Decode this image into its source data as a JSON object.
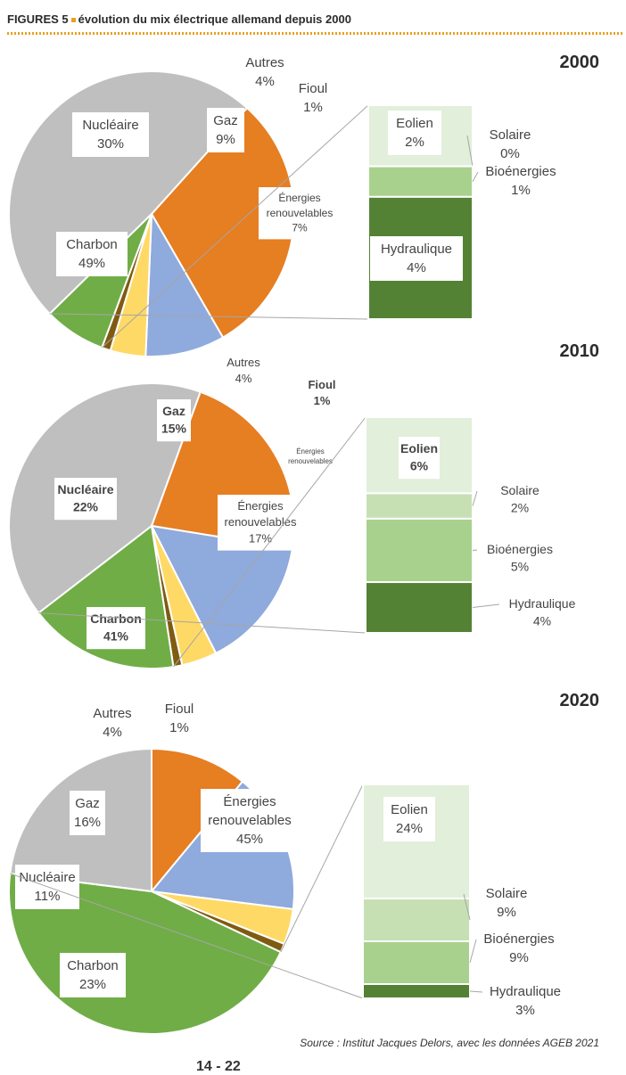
{
  "header": {
    "prefix": "FIGURES 5",
    "title": "évolution du mix électrique allemand depuis 2000",
    "accent_color": "#e8a020"
  },
  "colors": {
    "nucleaire": "#e67e22",
    "gaz": "#8faadc",
    "autres": "#ffd966",
    "fioul": "#7f5b12",
    "renouvelables": "#70ad47",
    "charbon": "#bfbfbf",
    "eolien": "#e2efda",
    "solaire": "#c6e0b4",
    "bioenergies": "#a9d18e",
    "hydraulique": "#548235"
  },
  "chart_data": [
    {
      "type": "pie",
      "title": "2000",
      "slices": [
        {
          "key": "nucleaire",
          "label": "Nucléaire",
          "value": 30,
          "value_label": "30%"
        },
        {
          "key": "gaz",
          "label": "Gaz",
          "value": 9,
          "value_label": "9%"
        },
        {
          "key": "autres",
          "label": "Autres",
          "value": 4,
          "value_label": "4%"
        },
        {
          "key": "fioul",
          "label": "Fioul",
          "value": 1,
          "value_label": "1%"
        },
        {
          "key": "renouvelables",
          "label": "Énergies renouvelables",
          "value": 7,
          "value_label": "7%"
        },
        {
          "key": "charbon",
          "label": "Charbon",
          "value": 49,
          "value_label": "49%"
        }
      ],
      "breakdown": {
        "type": "stacked-bar",
        "of": "renouvelables",
        "segments": [
          {
            "key": "eolien",
            "label": "Eolien",
            "value": 2,
            "value_label": "2%"
          },
          {
            "key": "solaire",
            "label": "Solaire",
            "value": 0,
            "value_label": "0%"
          },
          {
            "key": "bioenergies",
            "label": "Bioénergies",
            "value": 1,
            "value_label": "1%"
          },
          {
            "key": "hydraulique",
            "label": "Hydraulique",
            "value": 4,
            "value_label": "4%"
          }
        ]
      }
    },
    {
      "type": "pie",
      "title": "2010",
      "slices": [
        {
          "key": "nucleaire",
          "label": "Nucléaire",
          "value": 22,
          "value_label": "22%"
        },
        {
          "key": "gaz",
          "label": "Gaz",
          "value": 15,
          "value_label": "15%"
        },
        {
          "key": "autres",
          "label": "Autres",
          "value": 4,
          "value_label": "4%"
        },
        {
          "key": "fioul",
          "label": "Fioul",
          "value": 1,
          "value_label": "1%"
        },
        {
          "key": "renouvelables",
          "label": "Énergies renouvelables",
          "value": 17,
          "value_label": "17%",
          "secondary_label": "Énergies renouvelables"
        },
        {
          "key": "charbon",
          "label": "Charbon",
          "value": 41,
          "value_label": "41%"
        }
      ],
      "breakdown": {
        "type": "stacked-bar",
        "of": "renouvelables",
        "segments": [
          {
            "key": "eolien",
            "label": "Eolien",
            "value": 6,
            "value_label": "6%"
          },
          {
            "key": "solaire",
            "label": "Solaire",
            "value": 2,
            "value_label": "2%"
          },
          {
            "key": "bioenergies",
            "label": "Bioénergies",
            "value": 5,
            "value_label": "5%"
          },
          {
            "key": "hydraulique",
            "label": "Hydraulique",
            "value": 4,
            "value_label": "4%"
          }
        ]
      }
    },
    {
      "type": "pie",
      "title": "2020",
      "slices": [
        {
          "key": "nucleaire",
          "label": "Nucléaire",
          "value": 11,
          "value_label": "11%"
        },
        {
          "key": "gaz",
          "label": "Gaz",
          "value": 16,
          "value_label": "16%"
        },
        {
          "key": "autres",
          "label": "Autres",
          "value": 4,
          "value_label": "4%"
        },
        {
          "key": "fioul",
          "label": "Fioul",
          "value": 1,
          "value_label": "1%"
        },
        {
          "key": "renouvelables",
          "label": "Énergies renouvelables",
          "value": 45,
          "value_label": "45%"
        },
        {
          "key": "charbon",
          "label": "Charbon",
          "value": 23,
          "value_label": "23%"
        }
      ],
      "breakdown": {
        "type": "stacked-bar",
        "of": "renouvelables",
        "segments": [
          {
            "key": "eolien",
            "label": "Eolien",
            "value": 24,
            "value_label": "24%"
          },
          {
            "key": "solaire",
            "label": "Solaire",
            "value": 9,
            "value_label": "9%"
          },
          {
            "key": "bioenergies",
            "label": "Bioénergies",
            "value": 9,
            "value_label": "9%"
          },
          {
            "key": "hydraulique",
            "label": "Hydraulique",
            "value": 3,
            "value_label": "3%"
          }
        ]
      }
    }
  ],
  "footer": {
    "source": "Source : Institut Jacques Delors, avec les données AGEB 2021",
    "page_number": "14 - 22"
  }
}
